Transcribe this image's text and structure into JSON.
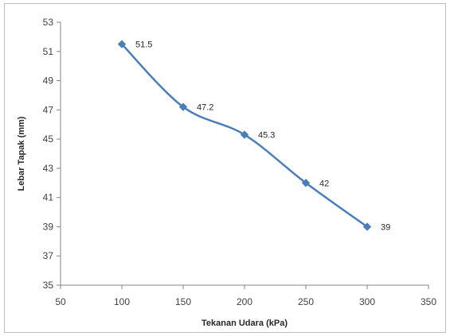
{
  "chart_data": {
    "type": "line",
    "title": "",
    "xlabel": "Tekanan Udara (kPa)",
    "ylabel": "Lebar Tapak (mm)",
    "xlim": [
      50,
      350
    ],
    "ylim": [
      35,
      53
    ],
    "xticks": [
      50,
      100,
      150,
      200,
      250,
      300,
      350
    ],
    "yticks": [
      35,
      37,
      39,
      41,
      43,
      45,
      47,
      49,
      51,
      53
    ],
    "x": [
      100,
      150,
      200,
      250,
      300
    ],
    "series": [
      {
        "values": [
          51.5,
          47.2,
          45.3,
          42,
          39
        ],
        "labels": [
          "51.5",
          "47.2",
          "45.3",
          "42",
          "39"
        ],
        "color": "#4a7ebb",
        "marker": "diamond",
        "smooth": true
      }
    ],
    "grid": false,
    "legend": "none"
  }
}
